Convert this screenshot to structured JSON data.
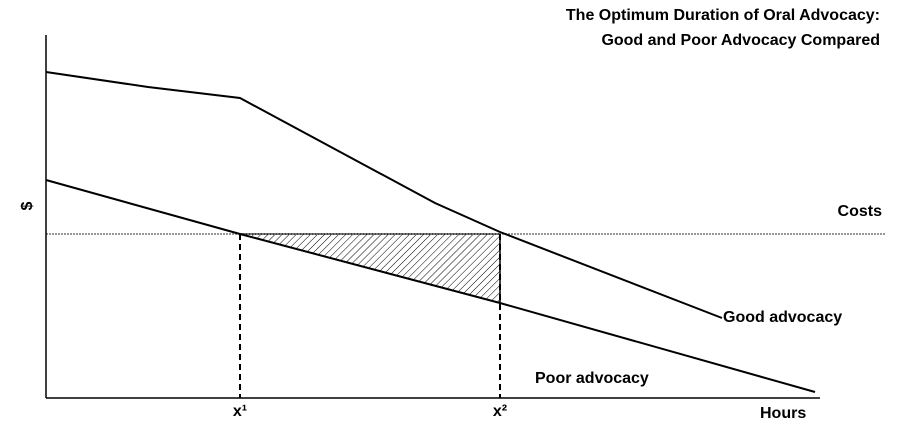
{
  "title": [
    "The Optimum Duration of Oral Advocacy:",
    "Good and Poor Advocacy Compared"
  ],
  "y_axis_label": "$",
  "x_axis_label": "Hours",
  "x_markers": [
    "x¹",
    "x²"
  ],
  "lines": [
    {
      "label": "Costs"
    },
    {
      "label": "Good advocacy"
    },
    {
      "label": "Poor advocacy"
    }
  ]
}
